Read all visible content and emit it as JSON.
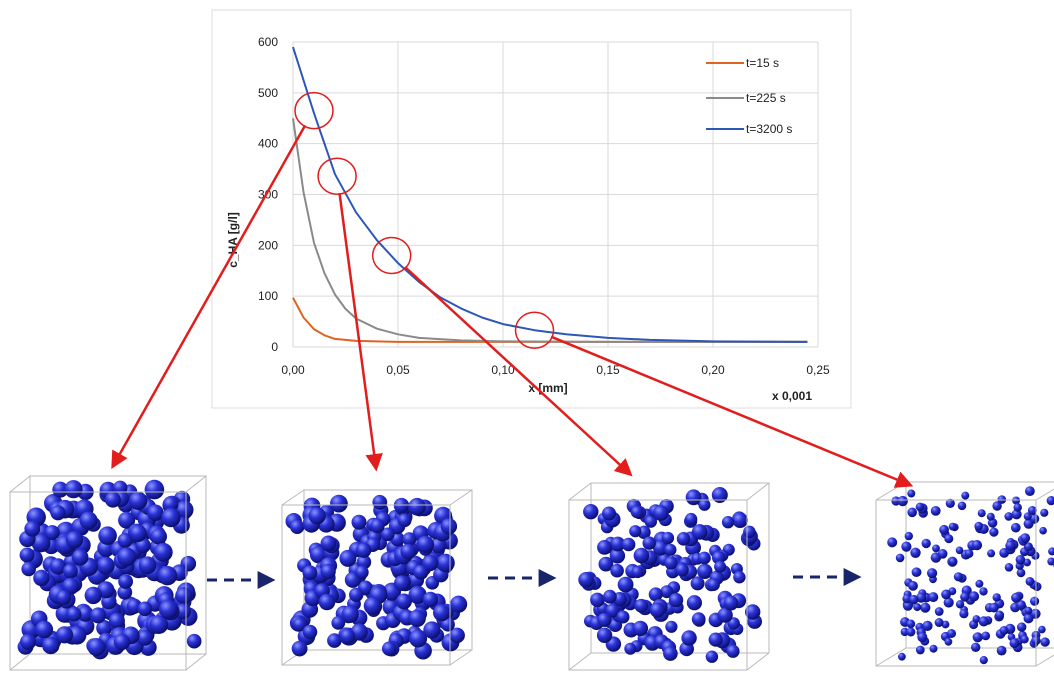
{
  "chart_data": {
    "type": "line",
    "xlabel": "x [mm]",
    "ylabel": "c_HA [g/l]",
    "x_multiplier": "x 0,001",
    "xlim": [
      0,
      0.25
    ],
    "ylim": [
      0,
      600
    ],
    "x_ticks": [
      "0,00",
      "0,05",
      "0,10",
      "0,15",
      "0,20",
      "0,25"
    ],
    "y_ticks": [
      "0",
      "100",
      "200",
      "300",
      "400",
      "500",
      "600"
    ],
    "legend_position": "top-right",
    "grid": true,
    "series": [
      {
        "name": "t=15 s",
        "color": "#e0631f",
        "x": [
          0,
          0.005,
          0.01,
          0.015,
          0.02,
          0.03,
          0.05,
          0.1,
          0.15,
          0.2,
          0.245
        ],
        "y": [
          97,
          58,
          35,
          23,
          16,
          12,
          10,
          10,
          10,
          10,
          10
        ]
      },
      {
        "name": "t=225 s",
        "color": "#8a8a8a",
        "x": [
          0,
          0.005,
          0.01,
          0.015,
          0.02,
          0.025,
          0.03,
          0.04,
          0.05,
          0.06,
          0.08,
          0.1,
          0.15,
          0.2,
          0.245
        ],
        "y": [
          450,
          305,
          205,
          145,
          103,
          75,
          56,
          36,
          25,
          18,
          13,
          11,
          10,
          10,
          10
        ]
      },
      {
        "name": "t=3200 s",
        "color": "#2c57b8",
        "x": [
          0,
          0.01,
          0.02,
          0.03,
          0.04,
          0.05,
          0.06,
          0.07,
          0.08,
          0.09,
          0.1,
          0.115,
          0.13,
          0.15,
          0.17,
          0.2,
          0.245
        ],
        "y": [
          590,
          460,
          340,
          265,
          210,
          165,
          128,
          98,
          76,
          58,
          45,
          33,
          25,
          18,
          14,
          11,
          10
        ]
      }
    ],
    "highlighted_points": [
      {
        "x": 0.01,
        "y": 465,
        "sample": 1
      },
      {
        "x": 0.021,
        "y": 336,
        "sample": 2
      },
      {
        "x": 0.047,
        "y": 180,
        "sample": 3
      },
      {
        "x": 0.115,
        "y": 33,
        "sample": 4
      }
    ]
  },
  "colors": {
    "annotation": "#e11d1d",
    "sphere": "#2a32d6",
    "flow_arrow": "#18256b",
    "grid": "#d9d9d9"
  },
  "structures": [
    {
      "name": "particle-structure-1",
      "density": "very dense"
    },
    {
      "name": "particle-structure-2",
      "density": "dense"
    },
    {
      "name": "particle-structure-3",
      "density": "medium"
    },
    {
      "name": "particle-structure-4",
      "density": "sparse"
    }
  ]
}
